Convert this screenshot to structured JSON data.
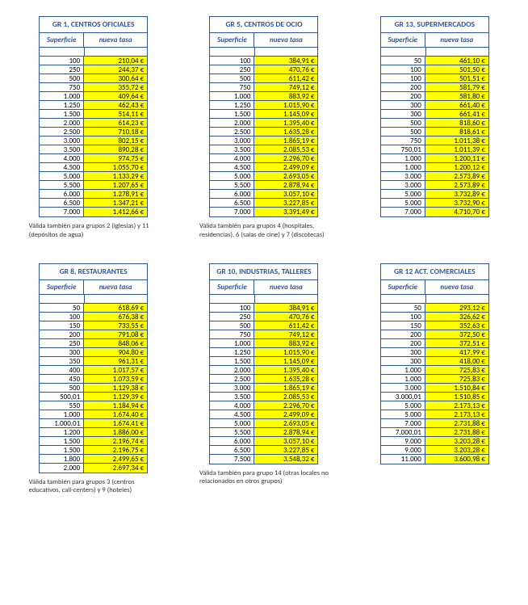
{
  "col_headers": {
    "superficie": "Superficie",
    "tasa": "nueva tasa"
  },
  "tables": [
    {
      "title": "GR 1, CENTROS OFICIALES",
      "footnote": "Válida también para grupos 2 (iglesias) y 11 (depósitos de agua)",
      "rows": [
        [
          "100",
          "210,04 €"
        ],
        [
          "250",
          "244,37 €"
        ],
        [
          "500",
          "300,64 €"
        ],
        [
          "750",
          "355,72 €"
        ],
        [
          "1.000",
          "409,64 €"
        ],
        [
          "1.250",
          "462,43 €"
        ],
        [
          "1.500",
          "514,11 €"
        ],
        [
          "2.000",
          "614,23 €"
        ],
        [
          "2.500",
          "710,18 €"
        ],
        [
          "3.000",
          "802,15 €"
        ],
        [
          "3.500",
          "890,28 €"
        ],
        [
          "4.000",
          "974,75 €"
        ],
        [
          "4.500",
          "1.055,70 €"
        ],
        [
          "5.000",
          "1.133,29 €"
        ],
        [
          "5.500",
          "1.207,65 €"
        ],
        [
          "6.000",
          "1.278,91 €"
        ],
        [
          "6.500",
          "1.347,21 €"
        ],
        [
          "7.000",
          "1.412,66 €"
        ]
      ]
    },
    {
      "title": "GR 5, CENTROS DE OCIO",
      "footnote": "Válida también para grupos 4 (hospitales, residencias), 6 (salas de cine) y 7 (discotecas)",
      "rows": [
        [
          "100",
          "384,91 €"
        ],
        [
          "250",
          "470,76 €"
        ],
        [
          "500",
          "611,42 €"
        ],
        [
          "750",
          "749,12 €"
        ],
        [
          "1.000",
          "883,92 €"
        ],
        [
          "1.250",
          "1.015,90 €"
        ],
        [
          "1.500",
          "1.145,09 €"
        ],
        [
          "2.000",
          "1.395,40 €"
        ],
        [
          "2.500",
          "1.635,28 €"
        ],
        [
          "3.000",
          "1.865,19 €"
        ],
        [
          "3.500",
          "2.085,53 €"
        ],
        [
          "4.000",
          "2.296,70 €"
        ],
        [
          "4.500",
          "2.499,09 €"
        ],
        [
          "5.000",
          "2.693,05 €"
        ],
        [
          "5.500",
          "2.878,94 €"
        ],
        [
          "6.000",
          "3.057,10 €"
        ],
        [
          "6.500",
          "3.227,85 €"
        ],
        [
          "7.000",
          "3.391,49 €"
        ]
      ]
    },
    {
      "title": "GR 13, SUPERMERCADOS",
      "footnote": "",
      "rows": [
        [
          "50",
          "461,10 €"
        ],
        [
          "100",
          "501,50 €"
        ],
        [
          "100",
          "501,51 €"
        ],
        [
          "200",
          "581,79 €"
        ],
        [
          "200",
          "581,80 €"
        ],
        [
          "300",
          "661,40 €"
        ],
        [
          "300",
          "661,41 €"
        ],
        [
          "500",
          "818,60 €"
        ],
        [
          "500",
          "818,61 €"
        ],
        [
          "750",
          "1.011,38 €"
        ],
        [
          "750,01",
          "1.011,39 €"
        ],
        [
          "1.000",
          "1.200,11 €"
        ],
        [
          "1.000",
          "1.200,12 €"
        ],
        [
          "3.000",
          "2.573,89 €"
        ],
        [
          "3.000",
          "2.573,89 €"
        ],
        [
          "5.000",
          "3.732,89 €"
        ],
        [
          "5.000",
          "3.732,90 €"
        ],
        [
          "7.000",
          "4.710,70 €"
        ]
      ]
    },
    {
      "title": "GR 8, RESTAURANTES",
      "footnote": "Válida también para grupos 3 (centros educativos, call-centers) y 9 (hoteles)",
      "rows": [
        [
          "50",
          "618,69 €"
        ],
        [
          "100",
          "676,38 €"
        ],
        [
          "150",
          "733,55 €"
        ],
        [
          "200",
          "791,08 €"
        ],
        [
          "250",
          "848,06 €"
        ],
        [
          "300",
          "904,80 €"
        ],
        [
          "350",
          "961,31 €"
        ],
        [
          "400",
          "1.017,57 €"
        ],
        [
          "450",
          "1.073,59 €"
        ],
        [
          "500",
          "1.129,38 €"
        ],
        [
          "500,01",
          "1.129,39 €"
        ],
        [
          "550",
          "1.184,94 €"
        ],
        [
          "1.000",
          "1.674,40 €"
        ],
        [
          "1.000,01",
          "1.674,41 €"
        ],
        [
          "1.200",
          "1.886,00 €"
        ],
        [
          "1.500",
          "2.196,74 €"
        ],
        [
          "1.500",
          "2.196,75 €"
        ],
        [
          "1.800",
          "2.499,65 €"
        ],
        [
          "2.000",
          "2.697,34 €"
        ]
      ]
    },
    {
      "title": "GR 10, INDUSTRIAS, TALLERES",
      "footnote": "Válida también para grupo 14 (otras locales no relacionados en otros grupos)",
      "rows": [
        [
          "100",
          "384,91 €"
        ],
        [
          "250",
          "470,76 €"
        ],
        [
          "500",
          "611,42 €"
        ],
        [
          "750",
          "749,12 €"
        ],
        [
          "1.000",
          "883,92 €"
        ],
        [
          "1.250",
          "1.015,90 €"
        ],
        [
          "1.500",
          "1.145,09 €"
        ],
        [
          "2.000",
          "1.395,40 €"
        ],
        [
          "2.500",
          "1.635,28 €"
        ],
        [
          "3.000",
          "1.865,19 €"
        ],
        [
          "3.500",
          "2.085,53 €"
        ],
        [
          "4.000",
          "2.296,70 €"
        ],
        [
          "4.500",
          "2.499,09 €"
        ],
        [
          "5.000",
          "2.693,05 €"
        ],
        [
          "5.500",
          "2.878,94 €"
        ],
        [
          "6.000",
          "3.057,10 €"
        ],
        [
          "6.500",
          "3.227,85 €"
        ],
        [
          "7.500",
          "3.548,32 €"
        ]
      ]
    },
    {
      "title": "GR 12 ACT. COMERCIALES",
      "footnote": "",
      "rows": [
        [
          "50",
          "293,12 €"
        ],
        [
          "100",
          "326,62 €"
        ],
        [
          "150",
          "352,63 €"
        ],
        [
          "200",
          "372,50 €"
        ],
        [
          "200",
          "372,51 €"
        ],
        [
          "300",
          "417,99 €"
        ],
        [
          "300",
          "418,00 €"
        ],
        [
          "1.000",
          "725,83 €"
        ],
        [
          "1.000",
          "725,83 €"
        ],
        [
          "3.000",
          "1.510,84 €"
        ],
        [
          "3.000,01",
          "1.510,85 €"
        ],
        [
          "5.000",
          "2.173,13 €"
        ],
        [
          "5.000",
          "2.173,13 €"
        ],
        [
          "7.000",
          "2.731,88 €"
        ],
        [
          "7.000,01",
          "2.731,88 €"
        ],
        [
          "9.000",
          "3.203,28 €"
        ],
        [
          "9.000",
          "3.203,28 €"
        ],
        [
          "11.000",
          "3.600,98 €"
        ]
      ]
    }
  ]
}
